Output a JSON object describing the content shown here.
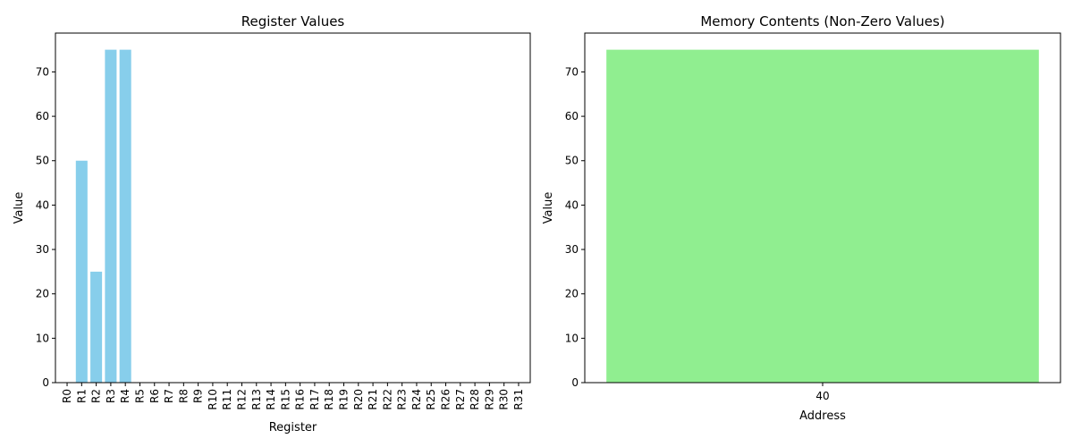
{
  "chart_data": [
    {
      "type": "bar",
      "title": "Register Values",
      "xlabel": "Register",
      "ylabel": "Value",
      "categories": [
        "R0",
        "R1",
        "R2",
        "R3",
        "R4",
        "R5",
        "R6",
        "R7",
        "R8",
        "R9",
        "R10",
        "R11",
        "R12",
        "R13",
        "R14",
        "R15",
        "R16",
        "R17",
        "R18",
        "R19",
        "R20",
        "R21",
        "R22",
        "R23",
        "R24",
        "R25",
        "R26",
        "R27",
        "R28",
        "R29",
        "R30",
        "R31"
      ],
      "values": [
        0,
        50,
        25,
        75,
        75,
        0,
        0,
        0,
        0,
        0,
        0,
        0,
        0,
        0,
        0,
        0,
        0,
        0,
        0,
        0,
        0,
        0,
        0,
        0,
        0,
        0,
        0,
        0,
        0,
        0,
        0,
        0
      ],
      "ylim": [
        0,
        78.75
      ],
      "yticks": [
        0,
        10,
        20,
        30,
        40,
        50,
        60,
        70
      ],
      "color": "#87ceeb",
      "grid": false,
      "legend": "none"
    },
    {
      "type": "bar",
      "title": "Memory Contents (Non-Zero Values)",
      "xlabel": "Address",
      "ylabel": "Value",
      "categories": [
        "40"
      ],
      "values": [
        75
      ],
      "ylim": [
        0,
        78.75
      ],
      "yticks": [
        0,
        10,
        20,
        30,
        40,
        50,
        60,
        70
      ],
      "color": "#90ee90",
      "grid": false,
      "legend": "none"
    }
  ]
}
